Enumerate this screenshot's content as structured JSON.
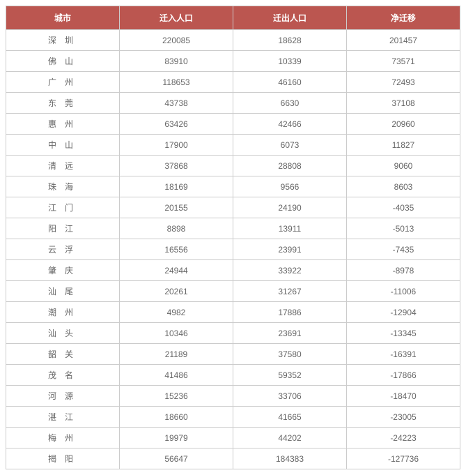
{
  "table": {
    "type": "table",
    "columns": [
      "城市",
      "迁入人口",
      "迁出人口",
      "净迁移"
    ],
    "rows": [
      [
        "深圳",
        "220085",
        "18628",
        "201457"
      ],
      [
        "佛山",
        "83910",
        "10339",
        "73571"
      ],
      [
        "广州",
        "118653",
        "46160",
        "72493"
      ],
      [
        "东莞",
        "43738",
        "6630",
        "37108"
      ],
      [
        "惠州",
        "63426",
        "42466",
        "20960"
      ],
      [
        "中山",
        "17900",
        "6073",
        "11827"
      ],
      [
        "清远",
        "37868",
        "28808",
        "9060"
      ],
      [
        "珠海",
        "18169",
        "9566",
        "8603"
      ],
      [
        "江门",
        "20155",
        "24190",
        "-4035"
      ],
      [
        "阳江",
        "8898",
        "13911",
        "-5013"
      ],
      [
        "云浮",
        "16556",
        "23991",
        "-7435"
      ],
      [
        "肇庆",
        "24944",
        "33922",
        "-8978"
      ],
      [
        "汕尾",
        "20261",
        "31267",
        "-11006"
      ],
      [
        "潮州",
        "4982",
        "17886",
        "-12904"
      ],
      [
        "汕头",
        "10346",
        "23691",
        "-13345"
      ],
      [
        "韶关",
        "21189",
        "37580",
        "-16391"
      ],
      [
        "茂名",
        "41486",
        "59352",
        "-17866"
      ],
      [
        "河源",
        "15236",
        "33706",
        "-18470"
      ],
      [
        "湛江",
        "18660",
        "41665",
        "-23005"
      ],
      [
        "梅州",
        "19979",
        "44202",
        "-24223"
      ],
      [
        "揭阳",
        "56647",
        "184383",
        "-127736"
      ]
    ],
    "header_bg_color": "#bb5650",
    "header_text_color": "#ffffff",
    "cell_text_color": "#666666",
    "border_color": "#cccccc",
    "header_fontsize": 12,
    "cell_fontsize": 12,
    "column_widths": [
      "25%",
      "25%",
      "25%",
      "25%"
    ]
  }
}
